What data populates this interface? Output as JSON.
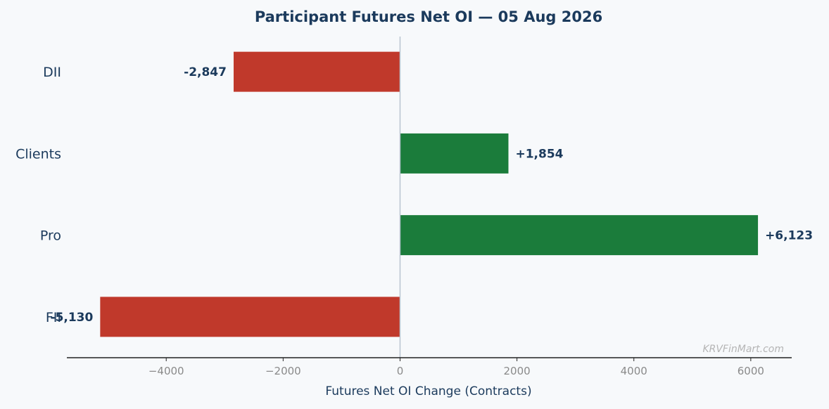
{
  "chart_data": {
    "type": "bar",
    "orientation": "horizontal",
    "title": "Participant Futures Net OI — 05 Aug 2026",
    "xlabel": "Futures Net OI Change (Contracts)",
    "ylabel": "",
    "categories": [
      "DII",
      "Clients",
      "Pro",
      "FII"
    ],
    "values": [
      -2847,
      1854,
      6123,
      -5130
    ],
    "data_labels": [
      "-2,847",
      "+1,854",
      "+6,123",
      "-5,130"
    ],
    "xlim": [
      -5700,
      6700
    ],
    "xticks": [
      -4000,
      -2000,
      0,
      2000,
      4000,
      6000
    ],
    "xtick_labels": [
      "−4000",
      "−2000",
      "0",
      "2000",
      "4000",
      "6000"
    ],
    "colors": {
      "positive": "#1b7c3b",
      "negative": "#c0392b",
      "zero_line": "#b8c4d0",
      "axis": "#222222"
    },
    "grid": false,
    "watermark": "KRVFinMart.com"
  }
}
